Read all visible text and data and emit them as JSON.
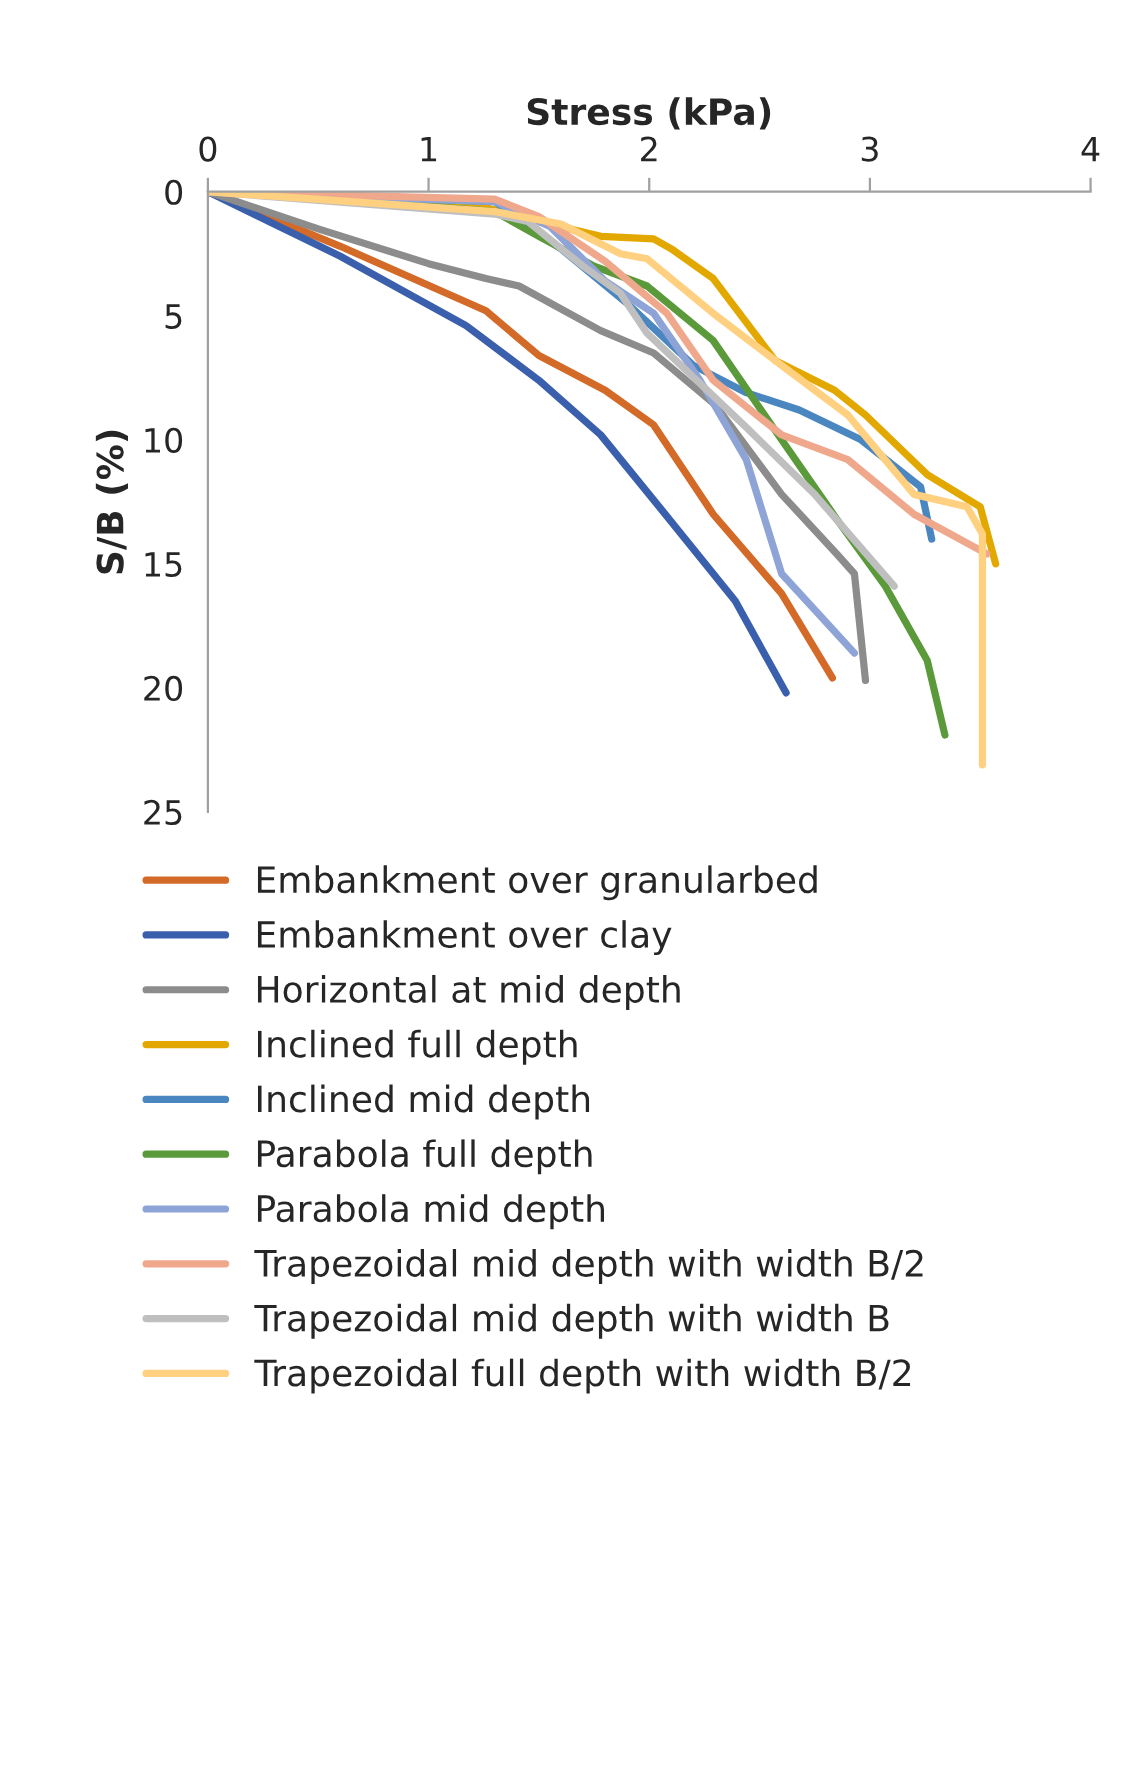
{
  "chart_data": {
    "type": "line",
    "xlabel": "Stress (kPa)",
    "ylabel": "S/B (%)",
    "xlim": [
      0,
      4
    ],
    "xticks": [
      0,
      1,
      2,
      3,
      4
    ],
    "ylim": [
      25,
      0
    ],
    "yticks": [
      0,
      5,
      10,
      15,
      20,
      25
    ],
    "grid": false,
    "legend": "bottom",
    "marker": "none",
    "line_style": "solid",
    "series": [
      {
        "name": "Embankment over granularbed",
        "color": "#d46a27",
        "x": [
          0,
          0.6,
          1.26,
          1.5,
          1.8,
          2.02,
          2.29,
          2.6,
          2.83
        ],
        "values": [
          0,
          2.2,
          4.8,
          6.6,
          8.0,
          9.4,
          13,
          16.2,
          19.6
        ]
      },
      {
        "name": "Embankment over clay",
        "color": "#3a5fad",
        "x": [
          0,
          0.6,
          1.17,
          1.5,
          1.78,
          2.1,
          2.39,
          2.62
        ],
        "values": [
          0,
          2.6,
          5.4,
          7.6,
          9.8,
          13.3,
          16.5,
          20.2
        ]
      },
      {
        "name": "Horizontal at mid depth",
        "color": "#8c8c8c",
        "x": [
          0,
          0.5,
          1.0,
          1.26,
          1.41,
          1.78,
          2.02,
          2.3,
          2.6,
          2.85,
          2.93,
          2.98
        ],
        "values": [
          0,
          1.5,
          2.9,
          3.5,
          3.8,
          5.6,
          6.5,
          8.6,
          12.2,
          14.6,
          15.4,
          19.7
        ]
      },
      {
        "name": "Inclined full depth",
        "color": "#e3a800",
        "x": [
          0,
          0.6,
          1.2,
          1.5,
          1.78,
          2.02,
          2.1,
          2.29,
          2.57,
          2.84,
          2.98,
          3.26,
          3.5,
          3.57
        ],
        "values": [
          0,
          0.2,
          0.5,
          1.2,
          1.8,
          1.9,
          2.3,
          3.5,
          6.8,
          8.0,
          9.0,
          11.4,
          12.7,
          15.0
        ]
      },
      {
        "name": "Inclined mid depth",
        "color": "#4a86c0",
        "x": [
          0,
          1.3,
          1.6,
          1.9,
          2.2,
          2.44,
          2.68,
          2.96,
          3.23,
          3.28
        ],
        "values": [
          0,
          0.4,
          2.3,
          4.5,
          7.0,
          8.1,
          8.8,
          10.0,
          11.9,
          14.0
        ]
      },
      {
        "name": "Parabola full depth",
        "color": "#5b9a3a",
        "x": [
          0,
          0.6,
          1.3,
          1.5,
          1.75,
          1.99,
          2.29,
          2.6,
          2.85,
          3.07,
          3.26,
          3.34
        ],
        "values": [
          0,
          0.3,
          0.8,
          1.8,
          3.0,
          3.8,
          6.0,
          10.0,
          13.2,
          15.9,
          18.9,
          21.9
        ]
      },
      {
        "name": "Parabola mid depth",
        "color": "#8ea4d6",
        "x": [
          0,
          1.3,
          1.55,
          1.8,
          2.02,
          2.23,
          2.44,
          2.6,
          2.93
        ],
        "values": [
          0,
          0.4,
          1.4,
          3.6,
          4.9,
          7.6,
          10.8,
          15.4,
          18.6
        ]
      },
      {
        "name": "Trapezoidal mid depth with width B/2",
        "color": "#f0a88c",
        "x": [
          0,
          1.3,
          1.5,
          1.8,
          2.08,
          2.29,
          2.6,
          2.9,
          3.2,
          3.53
        ],
        "values": [
          0,
          0.3,
          1.0,
          2.8,
          4.9,
          7.6,
          9.8,
          10.8,
          13.0,
          14.6
        ]
      },
      {
        "name": "Trapezoidal mid depth with width B",
        "color": "#bfbfbf",
        "x": [
          0,
          1.3,
          1.45,
          1.7,
          1.87,
          1.99,
          2.44,
          2.75,
          3.11
        ],
        "values": [
          0,
          0.9,
          1.2,
          3.0,
          4.1,
          5.7,
          9.5,
          12.2,
          15.9
        ]
      },
      {
        "name": "Trapezoidal full depth with width B/2",
        "color": "#ffd07f",
        "x": [
          0,
          1.3,
          1.6,
          1.87,
          1.99,
          2.29,
          2.6,
          2.9,
          3.2,
          3.44,
          3.51,
          3.51
        ],
        "values": [
          0,
          0.8,
          1.3,
          2.5,
          2.7,
          4.9,
          7.0,
          9.0,
          12.2,
          12.7,
          13.8,
          23.1
        ]
      }
    ]
  }
}
